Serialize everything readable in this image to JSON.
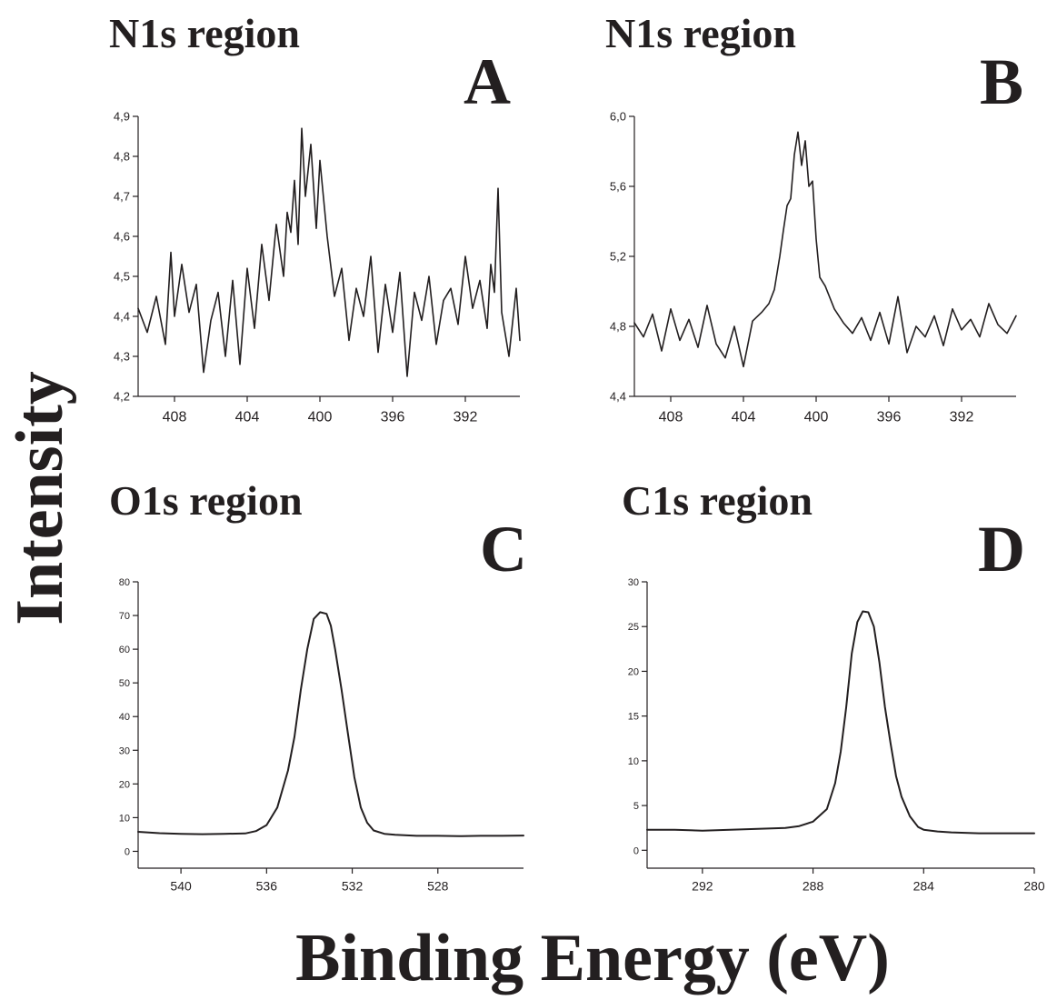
{
  "figure": {
    "ylabel": "Intensity",
    "xlabel": "Binding Energy (eV)"
  },
  "chart_data": [
    {
      "type": "line",
      "panel": "A",
      "title": "N1s region",
      "xlabel": "",
      "ylabel": "",
      "xlim": [
        410,
        389
      ],
      "ylim": [
        4.2,
        4.9
      ],
      "x_reversed": true,
      "xticks": [
        "408",
        "404",
        "400",
        "396",
        "392"
      ],
      "yticks": [
        "4,2",
        "4,3",
        "4,4",
        "4,5",
        "4,6",
        "4,7",
        "4,8",
        "4,9"
      ],
      "series": [
        {
          "x": [
            410,
            409.5,
            409,
            408.5,
            408.2,
            408,
            407.6,
            407.2,
            406.8,
            406.4,
            406,
            405.6,
            405.2,
            404.8,
            404.4,
            404,
            403.6,
            403.2,
            402.8,
            402.4,
            402,
            401.8,
            401.6,
            401.4,
            401.2,
            401,
            400.8,
            400.5,
            400.2,
            400,
            399.6,
            399.2,
            398.8,
            398.4,
            398,
            397.6,
            397.2,
            396.8,
            396.4,
            396,
            395.6,
            395.2,
            394.8,
            394.4,
            394,
            393.6,
            393.2,
            392.8,
            392.4,
            392,
            391.6,
            391.2,
            390.8,
            390.6,
            390.4,
            390.2,
            390,
            389.6,
            389.2,
            389
          ],
          "values": [
            4.42,
            4.36,
            4.45,
            4.33,
            4.56,
            4.4,
            4.53,
            4.41,
            4.48,
            4.26,
            4.39,
            4.46,
            4.3,
            4.49,
            4.28,
            4.52,
            4.37,
            4.58,
            4.44,
            4.63,
            4.5,
            4.66,
            4.61,
            4.74,
            4.58,
            4.87,
            4.7,
            4.83,
            4.62,
            4.79,
            4.6,
            4.45,
            4.52,
            4.34,
            4.47,
            4.4,
            4.55,
            4.31,
            4.48,
            4.36,
            4.51,
            4.25,
            4.46,
            4.39,
            4.5,
            4.33,
            4.44,
            4.47,
            4.38,
            4.55,
            4.42,
            4.49,
            4.37,
            4.53,
            4.46,
            4.72,
            4.41,
            4.3,
            4.47,
            4.34
          ]
        }
      ]
    },
    {
      "type": "line",
      "panel": "B",
      "title": "N1s region",
      "xlabel": "",
      "ylabel": "",
      "xlim": [
        410,
        389
      ],
      "ylim": [
        4.4,
        6.0
      ],
      "x_reversed": true,
      "xticks": [
        "408",
        "404",
        "400",
        "396",
        "392"
      ],
      "yticks": [
        "4,4",
        "4,8",
        "5,2",
        "5,6",
        "6,0"
      ],
      "series": [
        {
          "x": [
            410,
            409.5,
            409,
            408.5,
            408,
            407.5,
            407,
            406.5,
            406,
            405.5,
            405,
            404.5,
            404,
            403.5,
            403,
            402.6,
            402.3,
            402,
            401.8,
            401.6,
            401.4,
            401.2,
            401,
            400.8,
            400.6,
            400.4,
            400.2,
            400,
            399.8,
            399.5,
            399,
            398.5,
            398,
            397.5,
            397,
            396.5,
            396,
            395.5,
            395,
            394.5,
            394,
            393.5,
            393,
            392.5,
            392,
            391.5,
            391,
            390.5,
            390,
            389.5,
            389
          ],
          "values": [
            4.82,
            4.74,
            4.87,
            4.66,
            4.9,
            4.72,
            4.84,
            4.68,
            4.92,
            4.7,
            4.62,
            4.8,
            4.57,
            4.83,
            4.88,
            4.93,
            5.01,
            5.2,
            5.35,
            5.49,
            5.53,
            5.78,
            5.91,
            5.72,
            5.86,
            5.6,
            5.63,
            5.3,
            5.08,
            5.03,
            4.9,
            4.82,
            4.76,
            4.85,
            4.72,
            4.88,
            4.7,
            4.97,
            4.65,
            4.8,
            4.74,
            4.86,
            4.69,
            4.9,
            4.78,
            4.84,
            4.74,
            4.93,
            4.81,
            4.76,
            4.86
          ]
        }
      ]
    },
    {
      "type": "line",
      "panel": "C",
      "title": "O1s region",
      "xlabel": "",
      "ylabel": "",
      "xlim": [
        542,
        524
      ],
      "ylim": [
        -5,
        80
      ],
      "x_reversed": true,
      "xticks": [
        "540",
        "536",
        "532",
        "528"
      ],
      "yticks": [
        "0",
        "10",
        "20",
        "30",
        "40",
        "50",
        "60",
        "70",
        "80"
      ],
      "series": [
        {
          "x": [
            542,
            541,
            540,
            539,
            538,
            537,
            536.5,
            536,
            535.5,
            535,
            534.7,
            534.4,
            534.1,
            533.8,
            533.5,
            533.2,
            533,
            532.8,
            532.5,
            532.2,
            531.9,
            531.6,
            531.3,
            531,
            530.5,
            530,
            529,
            528,
            527,
            526,
            525,
            524
          ],
          "values": [
            5.8,
            5.4,
            5.2,
            5.1,
            5.2,
            5.3,
            6.0,
            7.8,
            13,
            24,
            34,
            48,
            60,
            69,
            71,
            70.5,
            67,
            60,
            48,
            35,
            22,
            13,
            8.5,
            6.2,
            5.2,
            4.9,
            4.6,
            4.6,
            4.5,
            4.6,
            4.6,
            4.7
          ]
        }
      ]
    },
    {
      "type": "line",
      "panel": "D",
      "title": "C1s region",
      "xlabel": "",
      "ylabel": "",
      "xlim": [
        294,
        280
      ],
      "ylim": [
        -2,
        30
      ],
      "x_reversed": true,
      "xticks": [
        "292",
        "288",
        "284",
        "280"
      ],
      "yticks": [
        "0",
        "5",
        "10",
        "15",
        "20",
        "25",
        "30"
      ],
      "series": [
        {
          "x": [
            294,
            293,
            292,
            291,
            290,
            289,
            288.5,
            288,
            287.5,
            287.2,
            287,
            286.8,
            286.6,
            286.4,
            286.2,
            286,
            285.8,
            285.6,
            285.4,
            285.2,
            285,
            284.8,
            284.5,
            284.2,
            284,
            283.5,
            283,
            282,
            281,
            280
          ],
          "values": [
            2.3,
            2.3,
            2.2,
            2.3,
            2.4,
            2.5,
            2.7,
            3.2,
            4.6,
            7.5,
            11,
            16,
            22,
            25.5,
            26.7,
            26.6,
            25,
            21,
            16,
            12,
            8.3,
            6,
            3.8,
            2.6,
            2.3,
            2.1,
            2.0,
            1.9,
            1.9,
            1.9
          ]
        }
      ]
    }
  ]
}
